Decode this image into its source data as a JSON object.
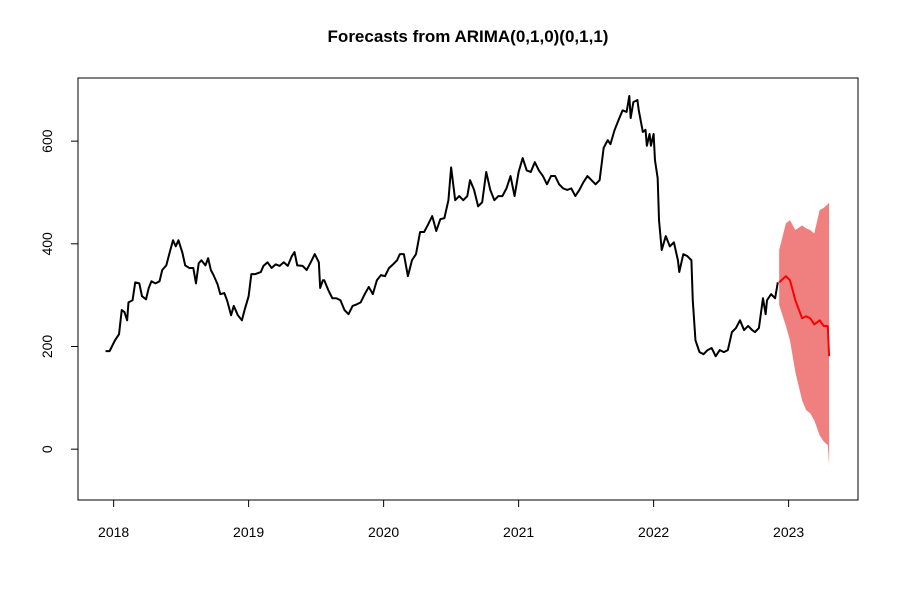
{
  "chart_data": {
    "type": "line",
    "title": "Forecasts from ARIMA(0,1,0)(0,1,1)",
    "xlim": [
      2017.736,
      2023.514
    ],
    "xticks": [
      2018,
      2019,
      2020,
      2021,
      2022,
      2023
    ],
    "ylim": [
      -99,
      723
    ],
    "yticks": [
      0,
      200,
      400,
      600
    ],
    "series": [
      {
        "color": "#000000",
        "x": [
          2017.94,
          2017.97,
          2018.01,
          2018.04,
          2018.06,
          2018.08,
          2018.1,
          2018.11,
          2018.14,
          2018.16,
          2018.19,
          2018.21,
          2018.24,
          2018.26,
          2018.28,
          2018.31,
          2018.34,
          2018.36,
          2018.39,
          2018.42,
          2018.44,
          2018.46,
          2018.48,
          2018.51,
          2018.53,
          2018.56,
          2018.59,
          2018.61,
          2018.63,
          2018.65,
          2018.68,
          2018.7,
          2018.72,
          2018.74,
          2018.77,
          2018.79,
          2018.82,
          2018.84,
          2018.87,
          2018.89,
          2018.92,
          2018.95,
          2018.97,
          2019.0,
          2019.02,
          2019.05,
          2019.09,
          2019.11,
          2019.14,
          2019.17,
          2019.2,
          2019.23,
          2019.26,
          2019.29,
          2019.32,
          2019.34,
          2019.36,
          2019.4,
          2019.43,
          2019.46,
          2019.49,
          2019.52,
          2019.53,
          2019.55,
          2019.56,
          2019.59,
          2019.62,
          2019.65,
          2019.68,
          2019.71,
          2019.74,
          2019.77,
          2019.8,
          2019.83,
          2019.86,
          2019.89,
          2019.92,
          2019.95,
          2019.98,
          2020.01,
          2020.04,
          2020.07,
          2020.1,
          2020.12,
          2020.15,
          2020.18,
          2020.21,
          2020.24,
          2020.27,
          2020.3,
          2020.33,
          2020.36,
          2020.39,
          2020.42,
          2020.45,
          2020.48,
          2020.5,
          2020.53,
          2020.56,
          2020.59,
          2020.62,
          2020.64,
          2020.67,
          2020.7,
          2020.73,
          2020.76,
          2020.79,
          2020.82,
          2020.85,
          2020.88,
          2020.91,
          2020.94,
          2020.97,
          2021.0,
          2021.03,
          2021.06,
          2021.09,
          2021.12,
          2021.15,
          2021.18,
          2021.21,
          2021.24,
          2021.27,
          2021.3,
          2021.33,
          2021.36,
          2021.39,
          2021.42,
          2021.45,
          2021.48,
          2021.51,
          2021.54,
          2021.57,
          2021.6,
          2021.63,
          2021.66,
          2021.68,
          2021.71,
          2021.74,
          2021.77,
          2021.8,
          2021.82,
          2021.83,
          2021.85,
          2021.88,
          2021.89,
          2021.92,
          2021.94,
          2021.95,
          2021.97,
          2021.98,
          2022.0,
          2022.01,
          2022.03,
          2022.04,
          2022.06,
          2022.09,
          2022.12,
          2022.15,
          2022.18,
          2022.19,
          2022.22,
          2022.25,
          2022.28,
          2022.29,
          2022.31,
          2022.34,
          2022.37,
          2022.4,
          2022.43,
          2022.46,
          2022.49,
          2022.52,
          2022.55,
          2022.58,
          2022.61,
          2022.64,
          2022.67,
          2022.7,
          2022.73,
          2022.75,
          2022.78,
          2022.81,
          2022.83,
          2022.84,
          2022.87,
          2022.9,
          2022.92
        ],
        "values": [
          191,
          191,
          212,
          224,
          271,
          267,
          251,
          286,
          290,
          325,
          323,
          298,
          292,
          314,
          327,
          323,
          327,
          349,
          358,
          388,
          407,
          395,
          407,
          382,
          358,
          353,
          353,
          323,
          362,
          368,
          358,
          372,
          349,
          339,
          321,
          302,
          304,
          290,
          261,
          279,
          261,
          251,
          271,
          298,
          341,
          341,
          345,
          357,
          364,
          353,
          360,
          357,
          364,
          357,
          376,
          384,
          358,
          357,
          349,
          364,
          380,
          364,
          314,
          329,
          329,
          310,
          294,
          294,
          290,
          271,
          263,
          279,
          282,
          286,
          302,
          316,
          302,
          329,
          339,
          337,
          353,
          360,
          368,
          380,
          380,
          337,
          368,
          380,
          423,
          423,
          438,
          454,
          425,
          448,
          450,
          485,
          549,
          485,
          493,
          485,
          493,
          524,
          505,
          473,
          481,
          540,
          505,
          485,
          493,
          493,
          508,
          532,
          493,
          540,
          567,
          543,
          540,
          559,
          543,
          532,
          516,
          532,
          532,
          516,
          508,
          505,
          508,
          493,
          505,
          520,
          532,
          524,
          516,
          524,
          587,
          602,
          594,
          621,
          641,
          660,
          657,
          688,
          645,
          676,
          680,
          660,
          618,
          622,
          591,
          614,
          591,
          614,
          563,
          528,
          446,
          388,
          415,
          395,
          403,
          368,
          345,
          380,
          376,
          368,
          290,
          212,
          189,
          185,
          193,
          197,
          181,
          193,
          189,
          193,
          228,
          236,
          251,
          232,
          240,
          232,
          228,
          236,
          294,
          263,
          290,
          302,
          294,
          325
        ]
      },
      {
        "color": "#ff0000",
        "band_color": "#f08080",
        "x": [
          2022.93,
          2022.98,
          2023.01,
          2023.05,
          2023.1,
          2023.13,
          2023.16,
          2023.19,
          2023.23,
          2023.26,
          2023.29,
          2023.3
        ],
        "values": [
          325,
          337,
          329,
          290,
          255,
          259,
          255,
          243,
          251,
          240,
          240,
          181
        ],
        "upper": [
          388,
          440,
          446,
          427,
          436,
          430,
          427,
          420,
          466,
          470,
          477,
          481
        ],
        "lower": [
          281,
          240,
          212,
          150,
          95,
          76,
          70,
          56,
          27,
          15,
          8,
          -33
        ]
      }
    ]
  }
}
